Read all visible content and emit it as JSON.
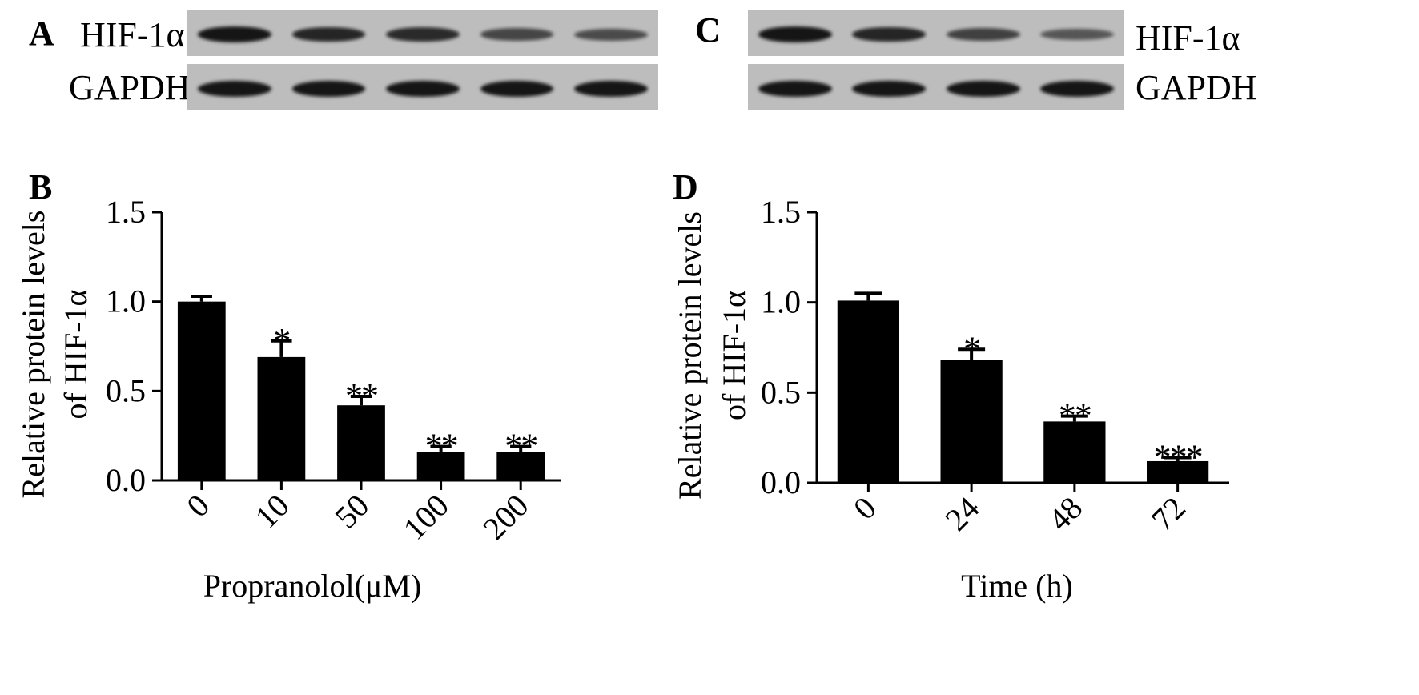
{
  "panels": {
    "A": {
      "letter": "A",
      "rows": [
        {
          "label": "HIF-1α",
          "intensities": [
            1.0,
            0.85,
            0.8,
            0.55,
            0.5
          ]
        },
        {
          "label": "GAPDH",
          "intensities": [
            1.0,
            1.0,
            1.0,
            1.0,
            1.0
          ]
        }
      ]
    },
    "C": {
      "letter": "C",
      "rows": [
        {
          "label": "HIF-1α",
          "intensities": [
            1.0,
            0.85,
            0.6,
            0.4
          ]
        },
        {
          "label": "GAPDH",
          "intensities": [
            1.0,
            1.0,
            1.0,
            1.0
          ]
        }
      ]
    },
    "B": {
      "letter": "B"
    },
    "D": {
      "letter": "D"
    }
  },
  "chart_data": [
    {
      "panel": "B",
      "type": "bar",
      "categories": [
        "0",
        "10",
        "50",
        "100",
        "200"
      ],
      "values": [
        1.0,
        0.69,
        0.42,
        0.16,
        0.16
      ],
      "errors": [
        0.03,
        0.09,
        0.05,
        0.03,
        0.03
      ],
      "significance": [
        "",
        "*",
        "**",
        "**",
        "**"
      ],
      "xlabel": "Propranolol(μM)",
      "ylabel_line1": "Relative protein levels",
      "ylabel_line2": "of HIF-1α",
      "ylim": [
        0,
        1.5
      ],
      "yticks": [
        "0.0",
        "0.5",
        "1.0",
        "1.5"
      ],
      "bar_color": "#000000"
    },
    {
      "panel": "D",
      "type": "bar",
      "categories": [
        "0",
        "24",
        "48",
        "72"
      ],
      "values": [
        1.01,
        0.68,
        0.34,
        0.12
      ],
      "errors": [
        0.04,
        0.06,
        0.03,
        0.02
      ],
      "significance": [
        "",
        "*",
        "**",
        "***"
      ],
      "xlabel": "Time (h)",
      "ylabel_line1": "Relative protein levels",
      "ylabel_line2": "of HIF-1α",
      "ylim": [
        0,
        1.5
      ],
      "yticks": [
        "0.0",
        "0.5",
        "1.0",
        "1.5"
      ],
      "bar_color": "#000000"
    }
  ]
}
